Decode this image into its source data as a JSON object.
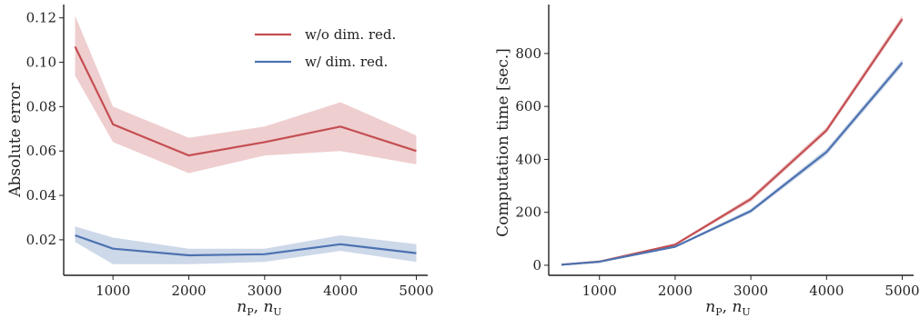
{
  "chart_data": [
    {
      "type": "line",
      "title": "",
      "xlabel": "n_P, n_U",
      "ylabel": "Absolute error",
      "x": [
        500,
        1000,
        2000,
        3000,
        4000,
        5000
      ],
      "xticks": [
        "1000",
        "2000",
        "3000",
        "4000",
        "5000"
      ],
      "xtick_values": [
        1000,
        2000,
        3000,
        4000,
        5000
      ],
      "yticks": [
        "0.02",
        "0.04",
        "0.06",
        "0.08",
        "0.10",
        "0.12"
      ],
      "ytick_values": [
        0.02,
        0.04,
        0.06,
        0.08,
        0.1,
        0.12
      ],
      "xlim": [
        350,
        5150
      ],
      "ylim": [
        0.004,
        0.126
      ],
      "grid": false,
      "legend_position": "top-right",
      "series": [
        {
          "name": "w/o dim. red.",
          "color": "#c44e52",
          "values": [
            0.107,
            0.072,
            0.058,
            0.064,
            0.071,
            0.06
          ],
          "lower": [
            0.094,
            0.064,
            0.05,
            0.058,
            0.06,
            0.054
          ],
          "upper": [
            0.121,
            0.08,
            0.066,
            0.071,
            0.082,
            0.067
          ]
        },
        {
          "name": "w/ dim. red.",
          "color": "#4c72b0",
          "values": [
            0.022,
            0.016,
            0.013,
            0.0135,
            0.018,
            0.014
          ],
          "lower": [
            0.019,
            0.009,
            0.009,
            0.01,
            0.015,
            0.01
          ],
          "upper": [
            0.026,
            0.021,
            0.016,
            0.016,
            0.022,
            0.018
          ]
        }
      ]
    },
    {
      "type": "line",
      "title": "",
      "xlabel": "n_P, n_U",
      "ylabel": "Computation time [sec.]",
      "x": [
        500,
        1000,
        2000,
        3000,
        4000,
        5000
      ],
      "xticks": [
        "1000",
        "2000",
        "3000",
        "4000",
        "5000"
      ],
      "xtick_values": [
        1000,
        2000,
        3000,
        4000,
        5000
      ],
      "yticks": [
        "0",
        "200",
        "400",
        "600",
        "800"
      ],
      "ytick_values": [
        0,
        200,
        400,
        600,
        800
      ],
      "xlim": [
        330,
        5150
      ],
      "ylim": [
        -38,
        985
      ],
      "grid": false,
      "legend_position": "none",
      "series": [
        {
          "name": "w/o dim. red.",
          "color": "#c44e52",
          "values": [
            2,
            14,
            78,
            250,
            510,
            930
          ],
          "lower": [
            1,
            12,
            74,
            240,
            500,
            918
          ],
          "upper": [
            3,
            16,
            82,
            260,
            522,
            945
          ]
        },
        {
          "name": "w/ dim. red.",
          "color": "#4c72b0",
          "values": [
            2,
            13,
            70,
            205,
            428,
            765
          ],
          "lower": [
            1,
            11,
            66,
            197,
            416,
            752
          ],
          "upper": [
            3,
            15,
            74,
            213,
            440,
            778
          ]
        }
      ]
    }
  ]
}
